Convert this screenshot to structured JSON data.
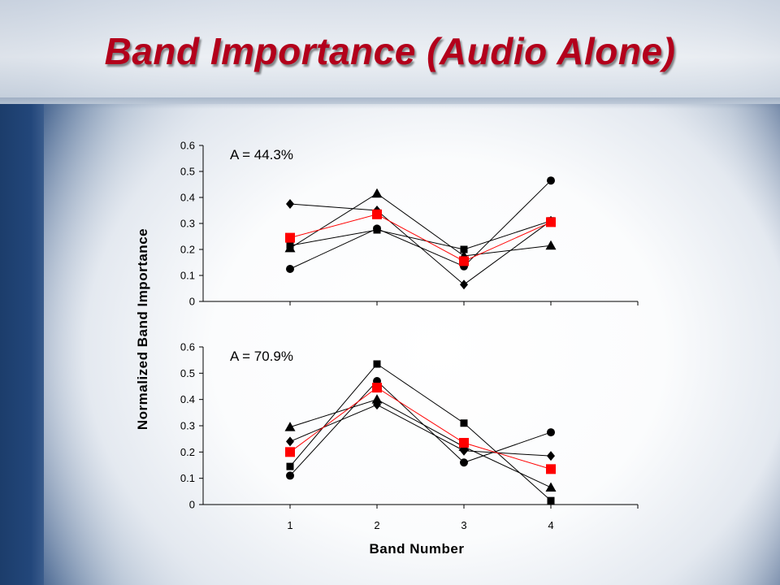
{
  "slide": {
    "title": "Band Importance (Audio Alone)"
  },
  "colors": {
    "title": "#b3001b",
    "mean_series": "#ff0000",
    "series": "#000000"
  },
  "chart_data": {
    "type": "line",
    "ylabel": "Normalized Band Importance",
    "xlabel": "Band Number",
    "x": [
      1,
      2,
      3,
      4
    ],
    "x_ticks": [
      "1",
      "2",
      "3",
      "4"
    ],
    "y_ticks": [
      "0",
      "0.1",
      "0.2",
      "0.3",
      "0.4",
      "0.5",
      "0.6"
    ],
    "ylim": [
      0,
      0.6
    ],
    "xlim": [
      0,
      5
    ],
    "grid": false,
    "panels": [
      {
        "annotation": "A = 44.3%",
        "series": [
          {
            "marker": "diamond",
            "values": [
              0.375,
              0.35,
              0.065,
              0.31
            ]
          },
          {
            "marker": "square",
            "values": [
              0.215,
              0.275,
              0.2,
              0.31
            ]
          },
          {
            "marker": "triangle",
            "values": [
              0.205,
              0.415,
              0.175,
              0.215
            ]
          },
          {
            "marker": "circle",
            "values": [
              0.125,
              0.28,
              0.135,
              0.465
            ]
          },
          {
            "marker": "square",
            "color": "#ff0000",
            "values": [
              0.245,
              0.335,
              0.155,
              0.305
            ]
          }
        ]
      },
      {
        "annotation": "A = 70.9%",
        "series": [
          {
            "marker": "diamond",
            "values": [
              0.24,
              0.38,
              0.205,
              0.185
            ]
          },
          {
            "marker": "square",
            "values": [
              0.145,
              0.535,
              0.31,
              0.015
            ]
          },
          {
            "marker": "triangle",
            "values": [
              0.295,
              0.4,
              0.22,
              0.065
            ]
          },
          {
            "marker": "circle",
            "values": [
              0.11,
              0.47,
              0.16,
              0.275
            ]
          },
          {
            "marker": "square",
            "color": "#ff0000",
            "values": [
              0.2,
              0.445,
              0.235,
              0.135
            ]
          }
        ]
      }
    ]
  }
}
